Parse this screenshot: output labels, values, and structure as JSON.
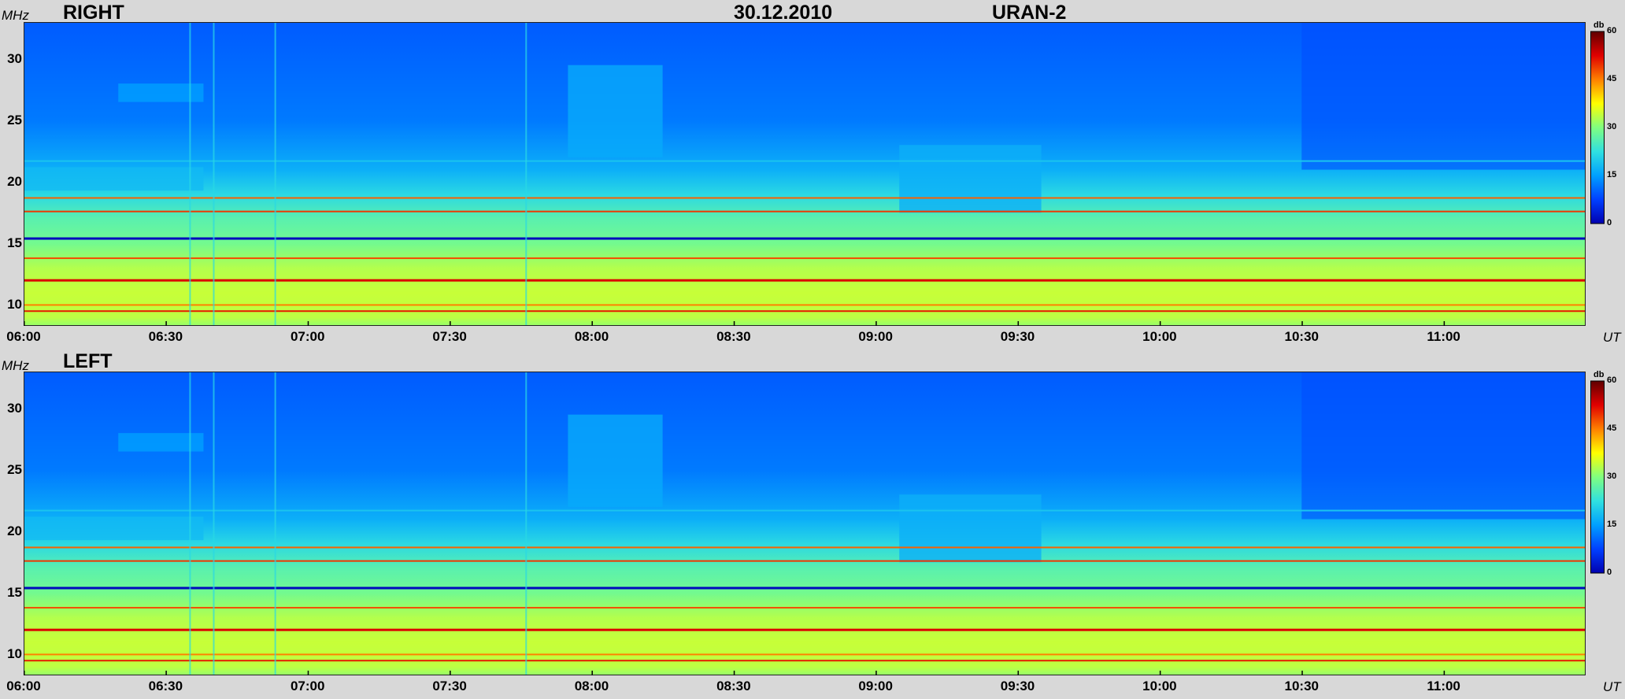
{
  "header": {
    "date": "30.12.2010",
    "instrument": "URAN-2"
  },
  "colors": {
    "background": "#d8d8d8",
    "colormap": [
      "#0000b0",
      "#0040ff",
      "#00a0ff",
      "#30e0e0",
      "#80ff80",
      "#ffff00",
      "#ff8000",
      "#e00000",
      "#600000"
    ]
  },
  "chart_data": [
    {
      "type": "heatmap",
      "title": "RIGHT",
      "ylabel": "MHz",
      "xlabel": "UT",
      "ylim": [
        8.3,
        33
      ],
      "xlim": [
        "06:00",
        "11:30"
      ],
      "yticks": [
        "10",
        "15",
        "20",
        "25",
        "30"
      ],
      "xticks": [
        "06:00",
        "06:30",
        "07:00",
        "07:30",
        "08:00",
        "08:30",
        "09:00",
        "09:30",
        "10:00",
        "10:30",
        "11:00"
      ],
      "colorbar": {
        "label": "db",
        "range": [
          0,
          60
        ],
        "ticks": [
          "0",
          "15",
          "30",
          "45",
          "60"
        ]
      }
    },
    {
      "type": "heatmap",
      "title": "LEFT",
      "ylabel": "MHz",
      "xlabel": "UT",
      "ylim": [
        8.3,
        33
      ],
      "xlim": [
        "06:00",
        "11:30"
      ],
      "yticks": [
        "10",
        "15",
        "20",
        "25",
        "30"
      ],
      "xticks": [
        "06:00",
        "06:30",
        "07:00",
        "07:30",
        "08:00",
        "08:30",
        "09:00",
        "09:30",
        "10:00",
        "10:30",
        "11:00"
      ],
      "colorbar": {
        "label": "db",
        "range": [
          0,
          60
        ],
        "ticks": [
          "0",
          "15",
          "30",
          "45",
          "60"
        ]
      }
    }
  ]
}
